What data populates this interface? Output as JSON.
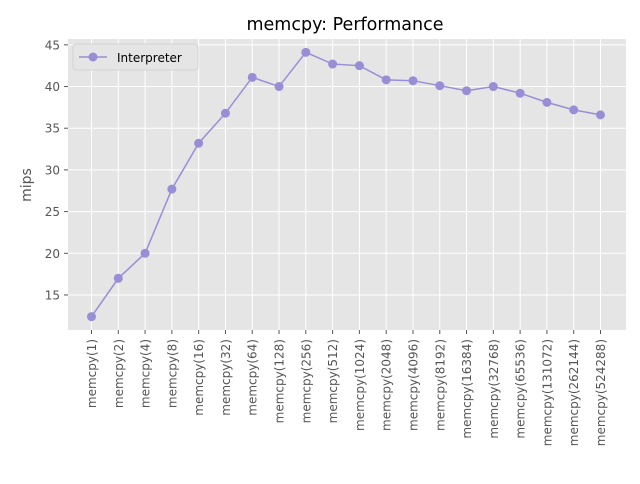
{
  "chart_data": {
    "type": "line",
    "title": "memcpy: Performance",
    "xlabel": "",
    "ylabel": "mips",
    "categories": [
      "memcpy(1)",
      "memcpy(2)",
      "memcpy(4)",
      "memcpy(8)",
      "memcpy(16)",
      "memcpy(32)",
      "memcpy(64)",
      "memcpy(128)",
      "memcpy(256)",
      "memcpy(512)",
      "memcpy(1024)",
      "memcpy(2048)",
      "memcpy(4096)",
      "memcpy(8192)",
      "memcpy(16384)",
      "memcpy(32768)",
      "memcpy(65536)",
      "memcpy(131072)",
      "memcpy(262144)",
      "memcpy(524288)"
    ],
    "series": [
      {
        "name": "Interpreter",
        "color": "#988ED5",
        "values": [
          12.4,
          17.0,
          20.0,
          27.7,
          33.2,
          36.8,
          41.1,
          40.0,
          44.1,
          42.7,
          42.5,
          40.8,
          40.7,
          40.1,
          39.5,
          40.0,
          39.2,
          38.1,
          37.2,
          36.6
        ]
      }
    ],
    "ylim": [
      10.8,
      45.7
    ],
    "yticks": [
      15,
      20,
      25,
      30,
      35,
      40,
      45
    ],
    "grid": true,
    "legend_position": "top-left",
    "style": {
      "plot_background": "#E5E5E5",
      "grid_color": "#FFFFFF",
      "tick_label_color": "#555555",
      "title_color": "#000000"
    }
  }
}
